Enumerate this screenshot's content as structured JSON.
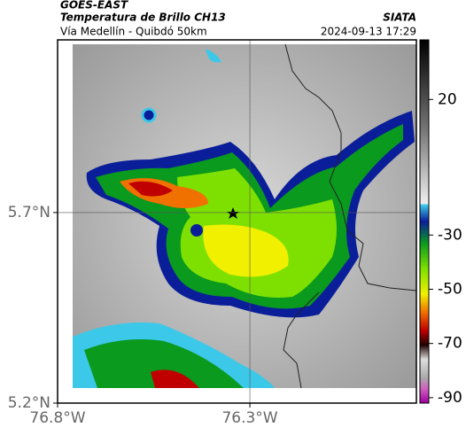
{
  "header": {
    "source": "GOES-EAST",
    "title": "Temperatura de Brillo CH13",
    "agency": "SIATA",
    "subtitle": "Vía Medellín - Quibdó 50km",
    "timestamp": "2024-09-13 17:29"
  },
  "map": {
    "xlim": [
      -76.8,
      -75.867
    ],
    "ylim": [
      5.2,
      6.153
    ],
    "xticks": [
      {
        "value": -76.8,
        "label": "76.8°W"
      },
      {
        "value": -76.3,
        "label": "76.3°W"
      }
    ],
    "yticks": [
      {
        "value": 5.7,
        "label": "5.7°N"
      },
      {
        "value": 5.2,
        "label": "5.2°N"
      }
    ],
    "grid": true
  },
  "colorbar": {
    "lim": [
      -92,
      42
    ],
    "ticks": [
      20,
      -30,
      -50,
      -70,
      -90
    ]
  }
}
